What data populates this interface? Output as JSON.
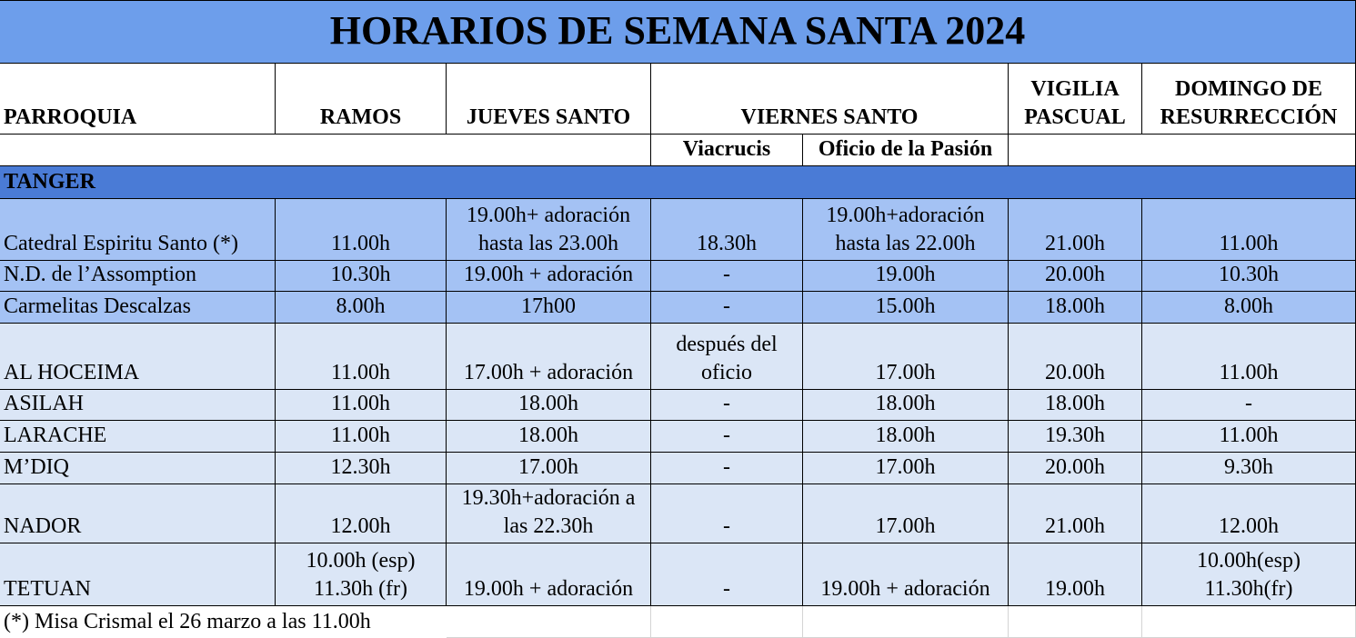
{
  "title": "HORARIOS DE SEMANA SANTA 2024",
  "header": {
    "columns": [
      "PARROQUIA",
      "RAMOS",
      "JUEVES SANTO",
      "VIERNES SANTO",
      "VIGILIA\nPASCUAL",
      "DOMINGO DE\nRESURRECCIÓN"
    ],
    "subcolumns": [
      "Viacrucis",
      "Oficio de la Pasión"
    ]
  },
  "table": {
    "group_label": "TANGER",
    "group_rows": [
      [
        "Catedral Espiritu Santo (*)",
        "11.00h",
        "19.00h+ adoración\nhasta las 23.00h",
        "18.30h",
        "19.00h+adoración\nhasta las 22.00h",
        "21.00h",
        "11.00h"
      ],
      [
        "N.D. de l’Assomption",
        "10.30h",
        "19.00h + adoración",
        "-",
        "19.00h",
        "20.00h",
        "10.30h"
      ],
      [
        "Carmelitas Descalzas",
        "8.00h",
        "17h00",
        "-",
        "15.00h",
        "18.00h",
        "8.00h"
      ]
    ],
    "rows": [
      [
        "AL HOCEIMA",
        "11.00h",
        "17.00h + adoración",
        "después del\noficio",
        "17.00h",
        "20.00h",
        "11.00h"
      ],
      [
        "ASILAH",
        "11.00h",
        "18.00h",
        "-",
        "18.00h",
        "18.00h",
        "-"
      ],
      [
        "LARACHE",
        "11.00h",
        "18.00h",
        "-",
        "18.00h",
        "19.30h",
        "11.00h"
      ],
      [
        "M’DIQ",
        "12.30h",
        "17.00h",
        "-",
        "17.00h",
        "20.00h",
        "9.30h"
      ],
      [
        "NADOR",
        "12.00h",
        "19.30h+adoración a\nlas 22.30h",
        "-",
        "17.00h",
        "21.00h",
        "12.00h"
      ],
      [
        "TETUAN",
        "10.00h (esp)\n11.30h (fr)",
        "19.00h + adoración",
        "-",
        "19.00h + adoración",
        "19.00h",
        "10.00h(esp)\n11.30h(fr)"
      ]
    ]
  },
  "footnote": "(*) Misa Crismal el 26 marzo a las 11.00h"
}
